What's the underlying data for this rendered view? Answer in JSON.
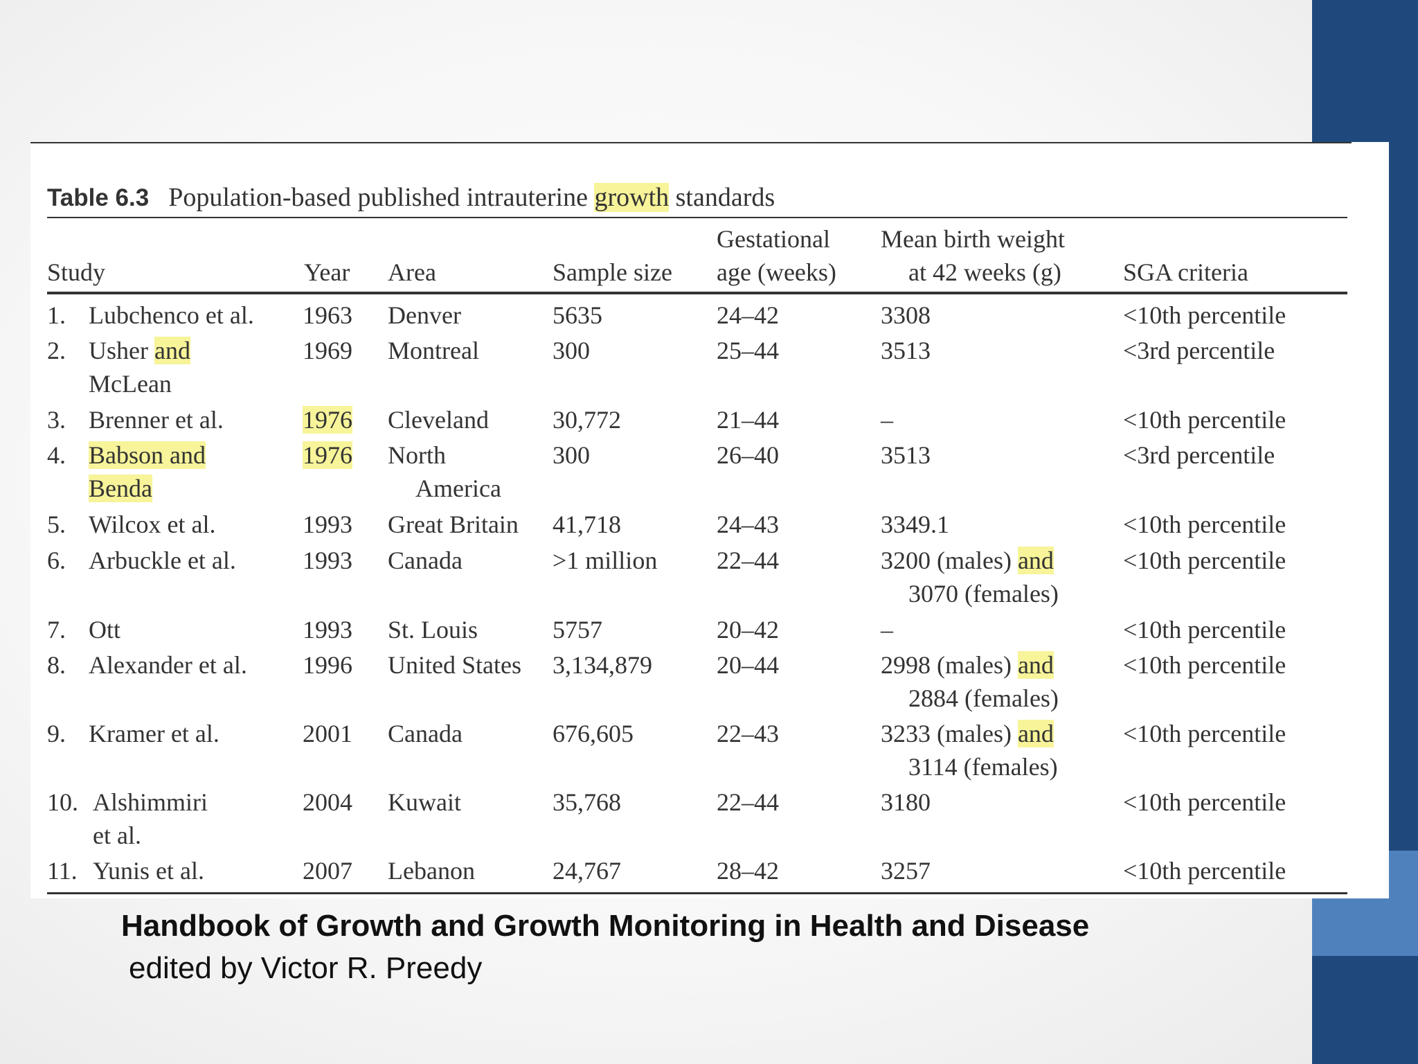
{
  "caption": {
    "table_number": "Table 6.3",
    "text_before": "Population-based published intrauterine ",
    "highlight": "growth",
    "text_after": " standards"
  },
  "headers": {
    "study": "Study",
    "year": "Year",
    "area": "Area",
    "sample_size": "Sample size",
    "gestational_line1": "Gestational",
    "gestational_line2": "age (weeks)",
    "mean_line1": "Mean birth weight",
    "mean_line2": "at 42 weeks (g)",
    "sga": "SGA criteria"
  },
  "rows": [
    {
      "num": "1.",
      "study": "Lubchenco et al.",
      "year": "1963",
      "area": "Denver",
      "sample": "5635",
      "ga": "24–42",
      "mbw": "3308",
      "sga": "<10th percentile"
    },
    {
      "num": "2.",
      "study_a": "Usher ",
      "study_hl": "and",
      "study_b": "",
      "study2": "McLean",
      "year": "1969",
      "area": "Montreal",
      "sample": "300",
      "ga": "25–44",
      "mbw": "3513",
      "sga": "<3rd percentile"
    },
    {
      "num": "3.",
      "study": "Brenner et al.",
      "year": "1976",
      "area": "Cleveland",
      "sample": "30,772",
      "ga": "21–44",
      "mbw": "–",
      "sga": "<10th percentile"
    },
    {
      "num": "4.",
      "study": "Babson and",
      "study2": "Benda",
      "year": "1976",
      "area": "North",
      "area2": "America",
      "sample": "300",
      "ga": "26–40",
      "mbw": "3513",
      "sga": "<3rd percentile"
    },
    {
      "num": "5.",
      "study": "Wilcox et al.",
      "year": "1993",
      "area": "Great Britain",
      "sample": "41,718",
      "ga": "24–43",
      "mbw": "3349.1",
      "sga": "<10th percentile"
    },
    {
      "num": "6.",
      "study": "Arbuckle et al.",
      "year": "1993",
      "area": "Canada",
      "sample": ">1 million",
      "ga": "22–44",
      "mbw_a": "3200 (males) ",
      "mbw_hl": "and",
      "mbw2": "3070 (females)",
      "sga": "<10th percentile"
    },
    {
      "num": "7.",
      "study": "Ott",
      "year": "1993",
      "area": "St. Louis",
      "sample": "5757",
      "ga": "20–42",
      "mbw": "–",
      "sga": "<10th percentile"
    },
    {
      "num": "8.",
      "study": "Alexander et al.",
      "year": "1996",
      "area": "United States",
      "sample": "3,134,879",
      "ga": "20–44",
      "mbw_a": "2998 (males) ",
      "mbw_hl": "and",
      "mbw2": "2884 (females)",
      "sga": "<10th percentile"
    },
    {
      "num": "9.",
      "study": "Kramer et al.",
      "year": "2001",
      "area": "Canada",
      "sample": "676,605",
      "ga": "22–43",
      "mbw_a": "3233 (males) ",
      "mbw_hl": "and",
      "mbw2": "3114 (females)",
      "sga": "<10th percentile"
    },
    {
      "num": "10.",
      "study": "Alshimmiri",
      "study2": "et al.",
      "year": "2004",
      "area": "Kuwait",
      "sample": "35,768",
      "ga": "22–44",
      "mbw": "3180",
      "sga": "<10th percentile"
    },
    {
      "num": "11.",
      "study": "Yunis et al.",
      "year": "2007",
      "area": "Lebanon",
      "sample": "24,767",
      "ga": "28–42",
      "mbw": "3257",
      "sga": "<10th percentile"
    }
  ],
  "footer": {
    "title": "Handbook of Growth and Growth Monitoring in Health and Disease",
    "subtitle": "edited by Victor R. Preedy"
  },
  "colors": {
    "sidebar_dark": "#1f497d",
    "sidebar_light": "#4f81bd",
    "highlight": "#f7f49a"
  }
}
